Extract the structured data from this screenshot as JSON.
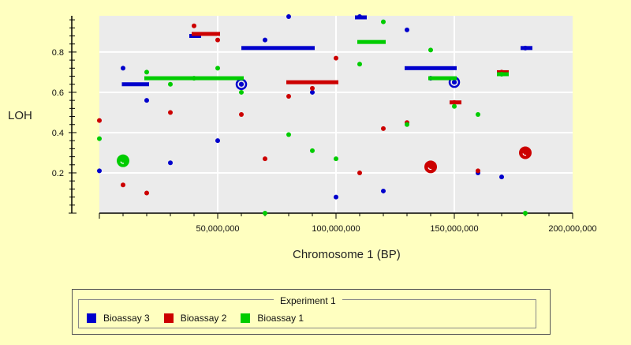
{
  "chart_data": {
    "type": "scatter",
    "xlabel": "Chromosome 1 (BP)",
    "ylabel": "LOH",
    "xlim": [
      0,
      200000000
    ],
    "ylim": [
      0.0,
      0.98
    ],
    "xticks": [
      50000000,
      100000000,
      150000000,
      200000000
    ],
    "xtick_labels": [
      "50,000,000",
      "100,000,000",
      "150,000,000",
      "200,000,000"
    ],
    "yticks": [
      0.2,
      0.4,
      0.6,
      0.8
    ],
    "ytick_labels": [
      "0.2",
      "0.4",
      "0.6",
      "0.8"
    ],
    "grid": true,
    "legend_title": "Experiment 1",
    "series": [
      {
        "name": "Bioassay 3",
        "color": "#0000cc",
        "points": [
          [
            0,
            0.21
          ],
          [
            10000000,
            0.72
          ],
          [
            20000000,
            0.56
          ],
          [
            30000000,
            0.25
          ],
          [
            50000000,
            0.36
          ],
          [
            60000000,
            0.64
          ],
          [
            70000000,
            0.86
          ],
          [
            80000000,
            0.99
          ],
          [
            90000000,
            0.6
          ],
          [
            100000000,
            0.08
          ],
          [
            110000000,
            1.0
          ],
          [
            120000000,
            0.11
          ],
          [
            130000000,
            0.91
          ],
          [
            140000000,
            0.67
          ],
          [
            150000000,
            0.65
          ],
          [
            160000000,
            0.2
          ],
          [
            170000000,
            0.18
          ],
          [
            180000000,
            0.82
          ]
        ],
        "segments": [
          [
            9500000,
            21000000,
            0.64
          ],
          [
            38000000,
            43000000,
            0.88
          ],
          [
            60000000,
            91000000,
            0.82
          ],
          [
            108000000,
            113000000,
            1.0
          ],
          [
            129000000,
            151000000,
            0.72
          ],
          [
            178000000,
            183000000,
            0.82
          ]
        ],
        "highlights": [
          [
            60000000,
            0.64,
            "small"
          ],
          [
            150000000,
            0.65,
            "small"
          ]
        ]
      },
      {
        "name": "Bioassay 2",
        "color": "#cc0000",
        "points": [
          [
            0,
            0.46
          ],
          [
            10000000,
            0.14
          ],
          [
            20000000,
            0.1
          ],
          [
            30000000,
            0.5
          ],
          [
            40000000,
            0.93
          ],
          [
            50000000,
            0.86
          ],
          [
            60000000,
            0.49
          ],
          [
            70000000,
            0.27
          ],
          [
            80000000,
            0.58
          ],
          [
            90000000,
            0.62
          ],
          [
            100000000,
            0.77
          ],
          [
            110000000,
            0.2
          ],
          [
            120000000,
            0.42
          ],
          [
            130000000,
            0.45
          ],
          [
            140000000,
            0.23
          ],
          [
            150000000,
            0.55
          ],
          [
            160000000,
            0.21
          ],
          [
            170000000,
            0.7
          ],
          [
            180000000,
            0.3
          ]
        ],
        "segments": [
          [
            39000000,
            51000000,
            0.89
          ],
          [
            79000000,
            101000000,
            0.65
          ],
          [
            148000000,
            153000000,
            0.55
          ],
          [
            168000000,
            173000000,
            0.7
          ]
        ],
        "highlights": [
          [
            140000000,
            0.23,
            "large"
          ],
          [
            180000000,
            0.3,
            "large"
          ]
        ]
      },
      {
        "name": "Bioassay 1",
        "color": "#00cc00",
        "points": [
          [
            0,
            0.37
          ],
          [
            10000000,
            0.26
          ],
          [
            20000000,
            0.7
          ],
          [
            30000000,
            0.64
          ],
          [
            40000000,
            0.67
          ],
          [
            50000000,
            0.72
          ],
          [
            60000000,
            0.6
          ],
          [
            70000000,
            0.0
          ],
          [
            80000000,
            0.39
          ],
          [
            90000000,
            0.31
          ],
          [
            100000000,
            0.27
          ],
          [
            110000000,
            0.74
          ],
          [
            120000000,
            0.95
          ],
          [
            130000000,
            0.44
          ],
          [
            140000000,
            0.81
          ],
          [
            150000000,
            0.53
          ],
          [
            160000000,
            0.49
          ],
          [
            170000000,
            0.69
          ],
          [
            180000000,
            0.0
          ]
        ],
        "segments": [
          [
            19000000,
            61000000,
            0.67
          ],
          [
            109000000,
            121000000,
            0.85
          ],
          [
            139000000,
            151000000,
            0.67
          ],
          [
            168000000,
            173000000,
            0.69
          ]
        ],
        "highlights": [
          [
            10000000,
            0.26,
            "large"
          ]
        ]
      }
    ]
  }
}
